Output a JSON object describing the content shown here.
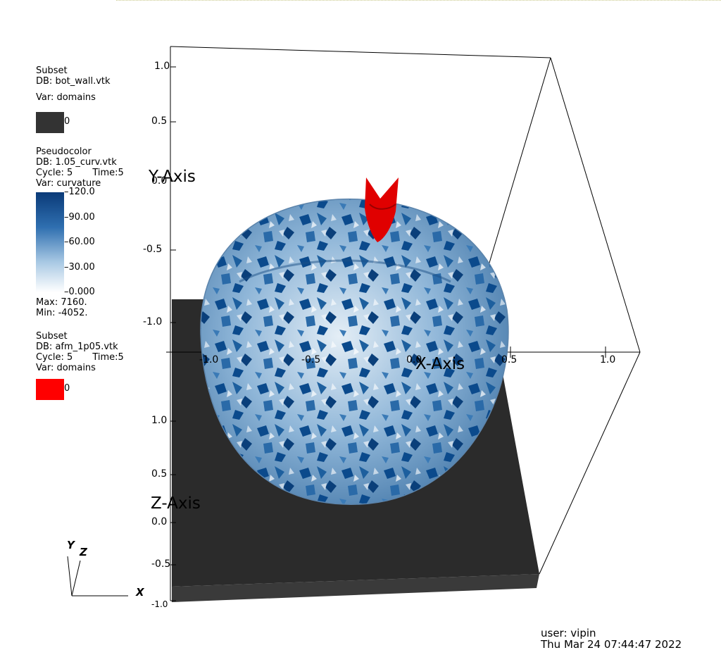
{
  "legends": {
    "subset_bot": {
      "title": "Subset",
      "db": "DB: bot_wall.vtk",
      "var": "Var: domains",
      "swatch_label": "0",
      "swatch_color": "#333333"
    },
    "pseudocolor": {
      "title": "Pseudocolor",
      "db": "DB: 1.05_curv.vtk",
      "cycle": "Cycle: 5",
      "time": "Time:5",
      "var": "Var: curvature",
      "ticks": [
        "120.0",
        "90.00",
        "60.00",
        "30.00",
        "0.000"
      ],
      "max": "Max:  7160.",
      "min": "Min: -4052.",
      "colormap": [
        "#ffffff",
        "#9cc3e0",
        "#3d7fba",
        "#08306b"
      ]
    },
    "subset_afm": {
      "title": "Subset",
      "db": "DB: afm_1p05.vtk",
      "cycle": "Cycle: 5",
      "time": "Time:5",
      "var": "Var: domains",
      "swatch_label": "0",
      "swatch_color": "#ff0000"
    }
  },
  "axes": {
    "y_title": "Y-Axis",
    "x_title": "X-Axis",
    "z_title": "Z-Axis",
    "y_ticks": [
      "1.0",
      "0.5",
      "0.0",
      "-0.5",
      "-1.0"
    ],
    "x_ticks": [
      "-1.0",
      "-0.5",
      "0.0",
      "0.5",
      "1.0"
    ],
    "z_ticks": [
      "1.0",
      "0.5",
      "0.0",
      "-0.5",
      "-1.0"
    ]
  },
  "triad": {
    "x": "X",
    "y": "Y",
    "z": "Z"
  },
  "user_info": {
    "user": "user: vipin",
    "datetime": "Thu Mar 24 07:44:47 2022"
  },
  "colors": {
    "wall": "#2b2b2b",
    "sphere_light": "#d6e4ef",
    "sphere_dark": "#0b4a8c",
    "afm_tip": "#e00000"
  }
}
